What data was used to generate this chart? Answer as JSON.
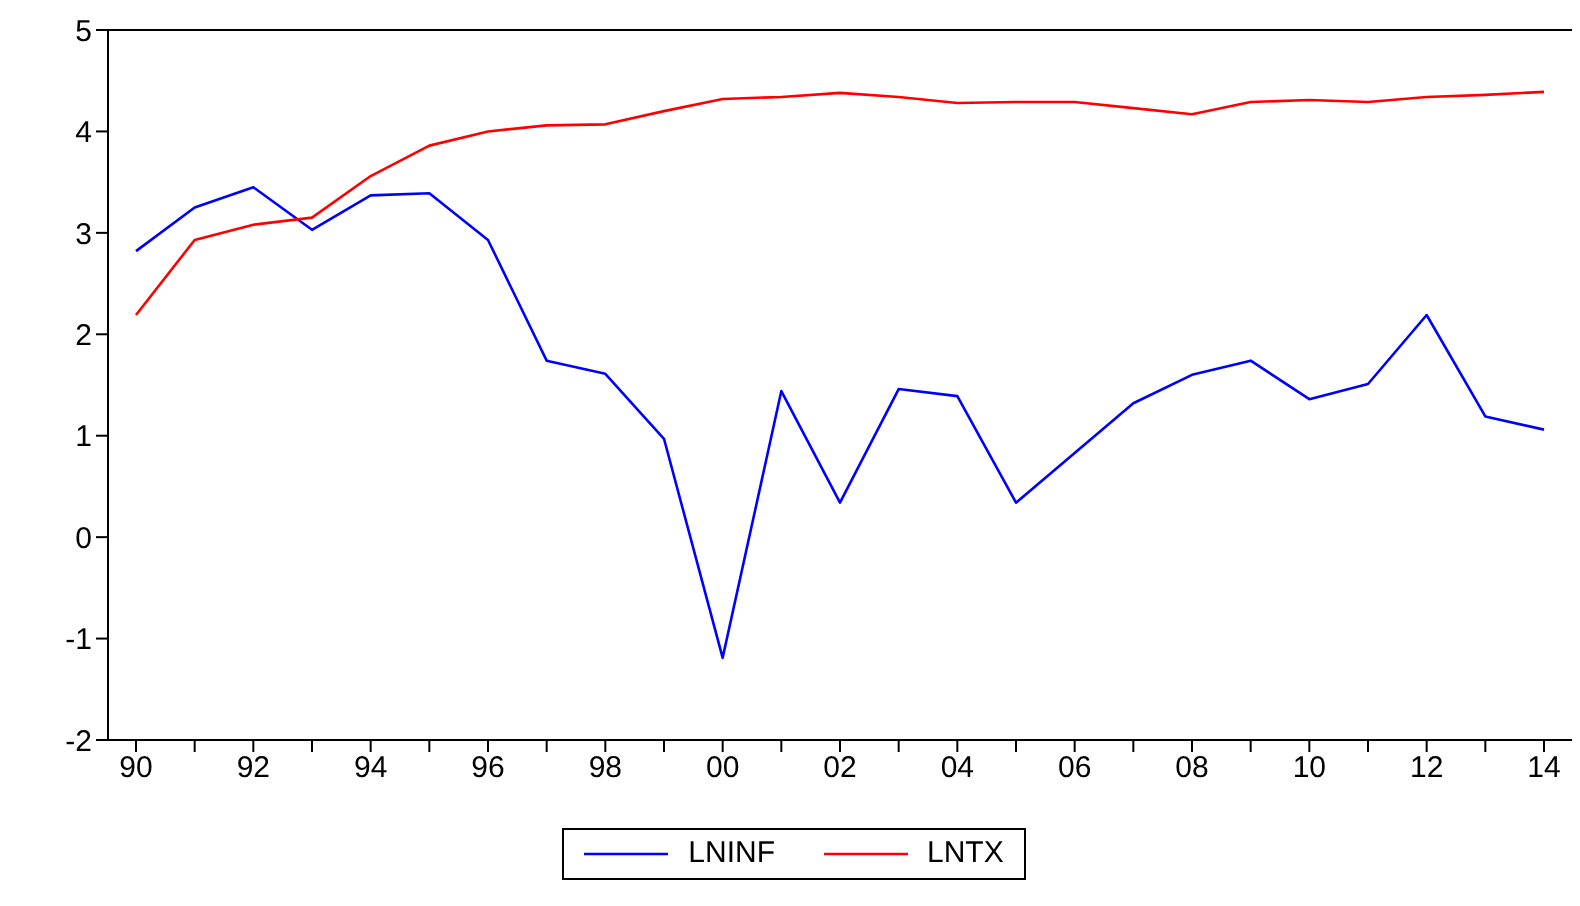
{
  "chart_data": {
    "type": "line",
    "categories": [
      "90",
      null,
      "92",
      null,
      "94",
      null,
      "96",
      null,
      "98",
      null,
      "00",
      null,
      "02",
      null,
      "04",
      null,
      "06",
      null,
      "08",
      null,
      "10",
      null,
      "12",
      null,
      "14"
    ],
    "series": [
      {
        "name": "LNINF",
        "color": "#0000ff",
        "values": [
          2.82,
          3.25,
          3.45,
          3.03,
          3.37,
          3.39,
          2.93,
          1.74,
          1.61,
          0.97,
          -1.19,
          1.44,
          0.34,
          1.46,
          1.39,
          0.34,
          0.83,
          1.32,
          1.6,
          1.74,
          1.36,
          1.51,
          2.19,
          1.19,
          1.06
        ]
      },
      {
        "name": "LNTX",
        "color": "#ff0000",
        "values": [
          2.19,
          2.93,
          3.08,
          3.15,
          3.56,
          3.86,
          4.0,
          4.06,
          4.07,
          4.2,
          4.32,
          4.34,
          4.38,
          4.34,
          4.28,
          4.29,
          4.29,
          4.23,
          4.17,
          4.29,
          4.31,
          4.29,
          4.34,
          4.36,
          4.39
        ]
      }
    ],
    "ylim": [
      -2,
      5
    ],
    "yticks": [
      -2,
      -1,
      0,
      1,
      2,
      3,
      4,
      5
    ],
    "grid": false,
    "legend": "bottom",
    "marker": "none",
    "line_style": "solid"
  }
}
